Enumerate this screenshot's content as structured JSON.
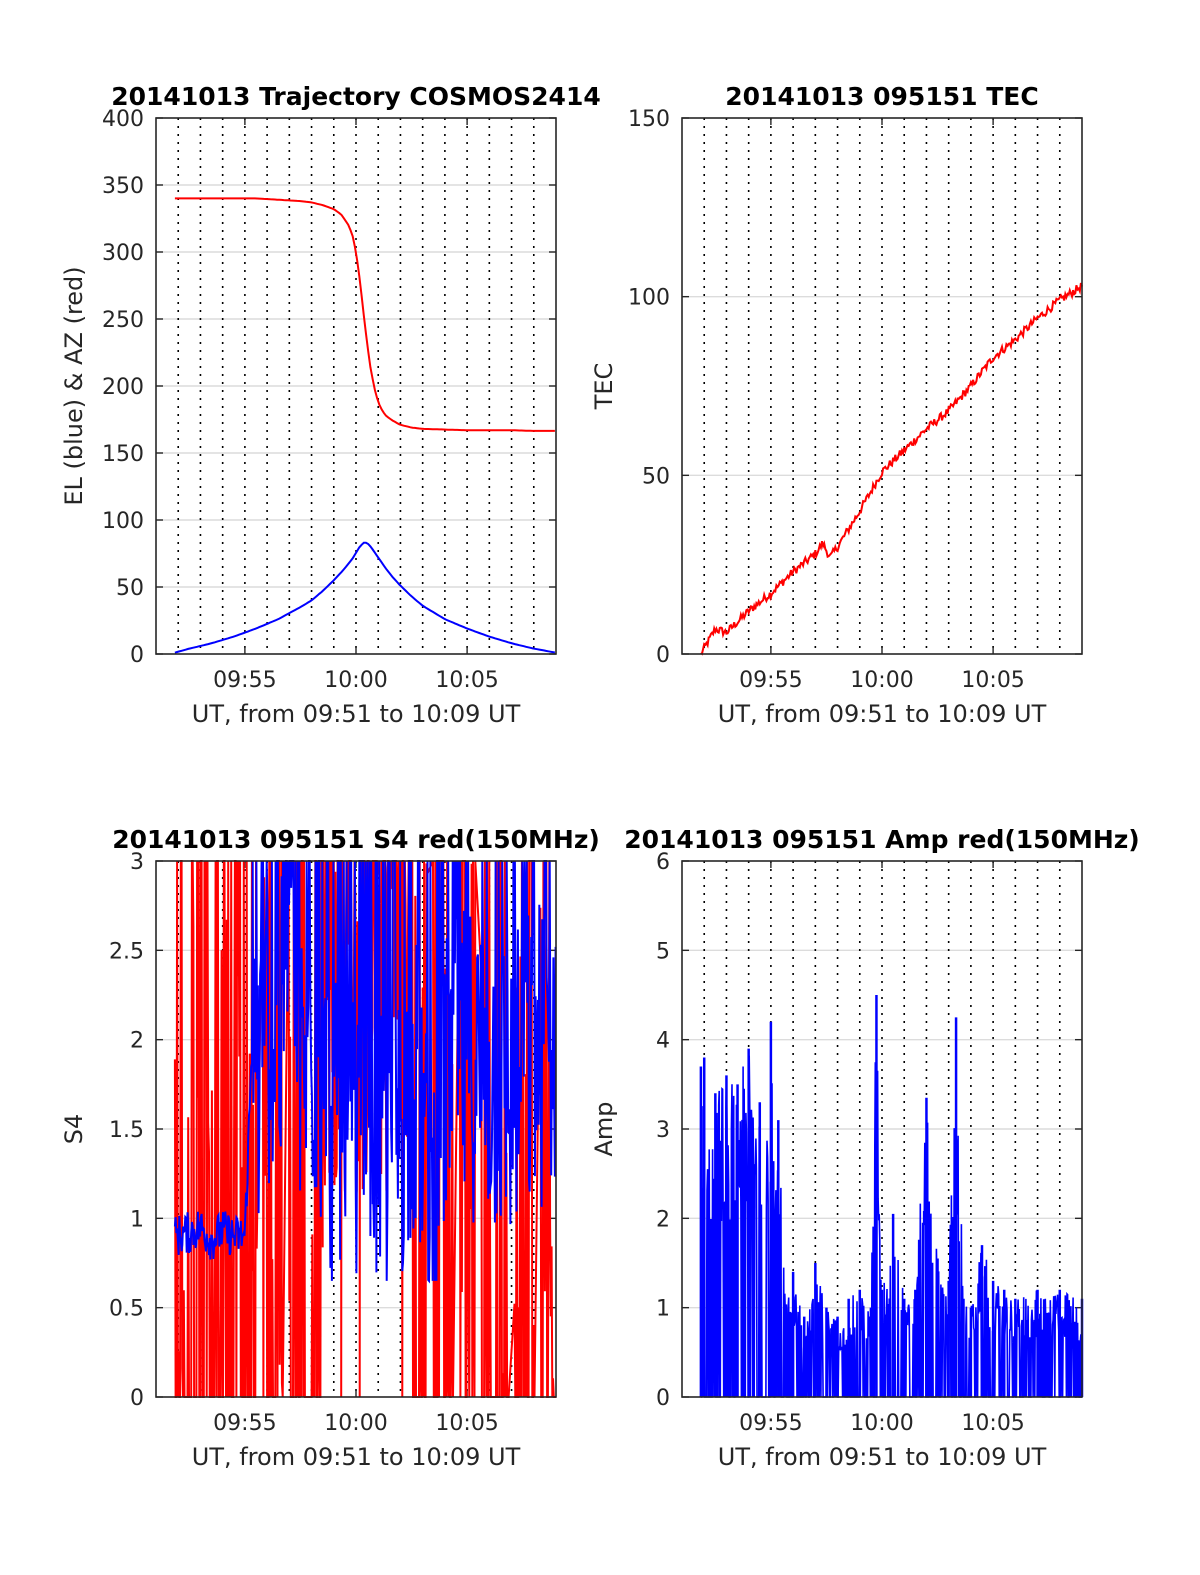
{
  "colors": {
    "red": "#ff0000",
    "blue": "#0000ff",
    "grid": "#dcdcdc"
  },
  "chart_data": [
    {
      "type": "line",
      "title": "20141013 Trajectory COSMOS2414",
      "xlabel": "UT, from 09:51 to 10:09 UT",
      "ylabel": "EL (blue) & AZ (red)",
      "xlim": [
        "09:51:00",
        "10:09:00"
      ],
      "ylim": [
        0,
        400
      ],
      "yticks": [
        "0",
        "50",
        "100",
        "150",
        "200",
        "250",
        "300",
        "350",
        "400"
      ],
      "xticks": [
        {
          "time": "09:55",
          "label": "09:55"
        },
        {
          "time": "10:00",
          "label": "10:00"
        },
        {
          "time": "10:05",
          "label": "10:05"
        }
      ],
      "grid": true,
      "series": [
        {
          "color": "red",
          "x": [
            "09:51:51",
            "09:52:30",
            "09:53:30",
            "09:54:30",
            "09:55:30",
            "09:56:30",
            "09:57:30",
            "09:58:00",
            "09:58:30",
            "09:59:00",
            "09:59:20",
            "09:59:40",
            "09:59:50",
            "10:00:00",
            "10:00:10",
            "10:00:20",
            "10:00:30",
            "10:00:40",
            "10:00:50",
            "10:01:00",
            "10:01:10",
            "10:01:20",
            "10:01:40",
            "10:02:00",
            "10:02:30",
            "10:03:00",
            "10:04:00",
            "10:05:00",
            "10:06:00",
            "10:07:00",
            "10:08:00",
            "10:09:00"
          ],
          "values": [
            340,
            340,
            340,
            340,
            340,
            339,
            338,
            337,
            335,
            332,
            328,
            320,
            313,
            300,
            280,
            255,
            232,
            212,
            198,
            188,
            182,
            178,
            174,
            171,
            169,
            168,
            167.5,
            167,
            167,
            167,
            166.5,
            166.5
          ]
        },
        {
          "color": "blue",
          "x": [
            "09:51:51",
            "09:52:30",
            "09:53:30",
            "09:54:30",
            "09:55:30",
            "09:56:30",
            "09:57:30",
            "09:58:00",
            "09:58:30",
            "09:59:00",
            "09:59:30",
            "09:59:50",
            "10:00:10",
            "10:00:20",
            "10:00:30",
            "10:00:40",
            "10:00:50",
            "10:01:00",
            "10:01:20",
            "10:01:40",
            "10:02:00",
            "10:02:30",
            "10:03:00",
            "10:03:30",
            "10:04:00",
            "10:05:00",
            "10:06:00",
            "10:07:00",
            "10:08:00",
            "10:09:00"
          ],
          "values": [
            1,
            4,
            8,
            13,
            19,
            26,
            35,
            40,
            47,
            55,
            64,
            71,
            80,
            83,
            83,
            80,
            76,
            72,
            64,
            57,
            51,
            43,
            36,
            31,
            26,
            19,
            13,
            8,
            4,
            1
          ]
        }
      ]
    },
    {
      "type": "line",
      "title": "20141013 095151 TEC",
      "xlabel": "UT, from 09:51 to 10:09 UT",
      "ylabel": "TEC",
      "xlim": [
        "09:51:00",
        "10:09:00"
      ],
      "ylim": [
        0,
        150
      ],
      "yticks": [
        "0",
        "50",
        "100",
        "150"
      ],
      "xticks": [
        {
          "time": "09:55",
          "label": "09:55"
        },
        {
          "time": "10:00",
          "label": "10:00"
        },
        {
          "time": "10:05",
          "label": "10:05"
        }
      ],
      "grid": true,
      "series": [
        {
          "color": "red",
          "x": [
            "09:51:51",
            "09:52:30",
            "09:53:00",
            "09:54:00",
            "09:55:00",
            "09:56:00",
            "09:57:00",
            "09:57:20",
            "09:57:40",
            "09:58:00",
            "09:59:00",
            "10:00:00",
            "10:01:00",
            "10:02:00",
            "10:03:00",
            "10:04:00",
            "10:05:00",
            "10:06:00",
            "10:07:00",
            "10:08:00",
            "10:09:00"
          ],
          "values": [
            0,
            7,
            6,
            12,
            17,
            23,
            28,
            31,
            27,
            30,
            40,
            51,
            57,
            63,
            68,
            75,
            83,
            88,
            94,
            99,
            103
          ]
        }
      ]
    },
    {
      "type": "line",
      "title": "20141013 095151 S4 red(150MHz)",
      "xlabel": "UT, from 09:51 to 10:09 UT",
      "ylabel": "S4",
      "xlim": [
        "09:51:00",
        "10:09:00"
      ],
      "ylim": [
        0,
        3
      ],
      "yticks": [
        "0",
        "0.5",
        "1",
        "1.5",
        "2",
        "2.5",
        "3"
      ],
      "xticks": [
        {
          "time": "09:55",
          "label": "09:55"
        },
        {
          "time": "10:00",
          "label": "10:00"
        },
        {
          "time": "10:05",
          "label": "10:05"
        }
      ],
      "grid": true,
      "series": [
        {
          "color": "red",
          "x_start": "09:51:51",
          "x_end": "10:09:00",
          "segments": [
            {
              "from": "09:51:51",
              "to": "09:55:20",
              "min": 0,
              "max": 3
            },
            {
              "from": "09:55:20",
              "to": "09:58:30",
              "min": 0,
              "max": 3,
              "gaps": [
                "09:55:40",
                "09:56:50",
                "09:57:50"
              ]
            },
            {
              "from": "09:58:30",
              "to": "10:02:30",
              "min": 1.1,
              "max": 3,
              "drops_to_zero": [
                "09:59:20",
                "10:00:10",
                "10:02:05"
              ]
            },
            {
              "from": "10:02:30",
              "to": "10:09:00",
              "min": 0,
              "max": 3,
              "gaps": [
                "10:03:20",
                "10:04:30",
                "10:05:30",
                "10:07:00",
                "10:08:10"
              ]
            }
          ]
        },
        {
          "color": "blue",
          "x": [
            "09:51:51",
            "09:52:30",
            "09:53:00",
            "09:53:30",
            "09:54:00",
            "09:54:30",
            "09:55:00",
            "09:55:20",
            "09:55:40",
            "09:56:00",
            "09:56:30",
            "09:57:00",
            "09:57:30",
            "09:58:00",
            "09:58:30",
            "09:59:00",
            "09:59:30",
            "10:00:00",
            "10:00:20",
            "10:00:40",
            "10:01:00",
            "10:01:30",
            "10:02:00",
            "10:02:30",
            "10:03:00",
            "10:03:20",
            "10:03:40",
            "10:04:00",
            "10:05:00",
            "10:06:00",
            "10:07:00",
            "10:08:00",
            "10:09:00"
          ],
          "values": [
            0.9,
            0.92,
            0.95,
            0.88,
            0.93,
            0.9,
            0.9,
            2.0,
            1.7,
            2.1,
            1.9,
            2.3,
            1.8,
            2.0,
            1.7,
            1.4,
            1.6,
            1.2,
            1.5,
            1.7,
            1.3,
            1.4,
            1.5,
            1.8,
            1.6,
            0.7,
            1.6,
            1.7,
            1.9,
            1.8,
            1.7,
            1.9,
            2.0
          ],
          "range_low": 0.65,
          "range_high": 3
        }
      ]
    },
    {
      "type": "line",
      "title": "20141013 095151 Amp red(150MHz)",
      "xlabel": "UT, from 09:51 to 10:09 UT",
      "ylabel": "Amp",
      "xlim": [
        "09:51:00",
        "10:09:00"
      ],
      "ylim": [
        0,
        6
      ],
      "yticks": [
        "0",
        "1",
        "2",
        "3",
        "4",
        "5",
        "6"
      ],
      "xticks": [
        {
          "time": "09:55",
          "label": "09:55"
        },
        {
          "time": "10:00",
          "label": "10:00"
        },
        {
          "time": "10:05",
          "label": "10:05"
        }
      ],
      "grid": true,
      "series": [
        {
          "color": "blue",
          "x": [
            "09:51:51",
            "09:52:00",
            "09:52:30",
            "09:53:00",
            "09:53:30",
            "09:54:00",
            "09:54:30",
            "09:55:00",
            "09:55:20",
            "09:55:40",
            "09:56:00",
            "09:56:30",
            "09:57:00",
            "09:57:30",
            "09:58:00",
            "09:58:30",
            "09:59:00",
            "09:59:30",
            "09:59:45",
            "10:00:00",
            "10:00:30",
            "10:01:00",
            "10:01:30",
            "10:02:00",
            "10:02:30",
            "10:03:00",
            "10:03:20",
            "10:03:40",
            "10:04:00",
            "10:04:30",
            "10:05:00",
            "10:05:30",
            "10:06:00",
            "10:07:00",
            "10:08:00",
            "10:09:00"
          ],
          "peaks": [
            3.7,
            3.8,
            3.4,
            3.6,
            3.5,
            3.9,
            3.3,
            4.2,
            3.1,
            1.0,
            1.4,
            0.9,
            1.5,
            1.0,
            0.9,
            1.1,
            1.2,
            1.0,
            4.5,
            1.2,
            2.05,
            1.1,
            1.2,
            3.35,
            1.55,
            1.3,
            4.25,
            1.1,
            1.0,
            1.7,
            1.3,
            1.2,
            1.1,
            1.2,
            1.2,
            1.1
          ],
          "baseline": 0
        }
      ]
    }
  ]
}
